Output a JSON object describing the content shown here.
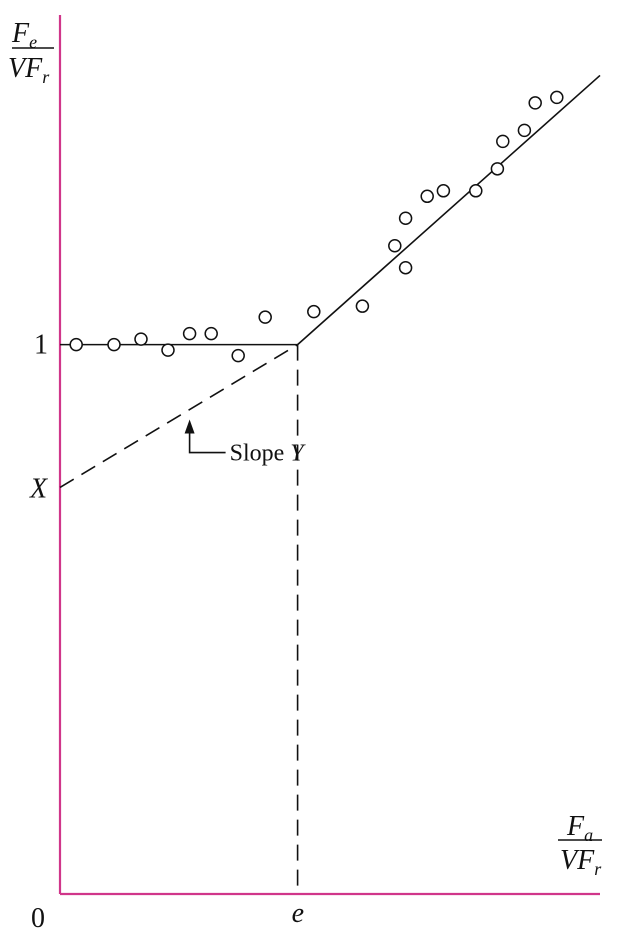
{
  "chart_data": {
    "type": "scatter",
    "title": "",
    "y_label": {
      "numerator_base": "F",
      "numerator_subscript": "e",
      "denominator_base": "VF",
      "denominator_subscript": "r"
    },
    "x_label": {
      "numerator_base": "F",
      "numerator_subscript": "a",
      "denominator_base": "VF",
      "denominator_subscript": "r"
    },
    "tick_labels": {
      "origin": "0",
      "y_one": "1",
      "y_intercept": "X",
      "x_break": "e"
    },
    "annotation": {
      "prefix": "Slope ",
      "variable": "Y"
    },
    "axes": {
      "xlim": [
        0,
        1
      ],
      "ylim": [
        0,
        1.6
      ],
      "grid": false,
      "axis_color": "#d0368a"
    },
    "e_value": 0.44,
    "x_intercept_value": 0.74,
    "series": [
      {
        "x": [
          0.03,
          0.1,
          0.15,
          0.2,
          0.24,
          0.28,
          0.33,
          0.38,
          0.47,
          0.56,
          0.62,
          0.64,
          0.64,
          0.68,
          0.71,
          0.77,
          0.81,
          0.82,
          0.86,
          0.88,
          0.92
        ],
        "y": [
          1.0,
          1.0,
          1.01,
          0.99,
          1.02,
          1.02,
          0.98,
          1.05,
          1.06,
          1.07,
          1.18,
          1.14,
          1.23,
          1.27,
          1.28,
          1.28,
          1.32,
          1.37,
          1.39,
          1.44,
          1.45
        ]
      }
    ],
    "fitted": {
      "flat_start": [
        0,
        1
      ],
      "break": [
        0.44,
        1
      ],
      "end": [
        1,
        1.49
      ]
    },
    "extension": {
      "start": [
        0,
        0.74
      ],
      "end": [
        0.44,
        1
      ]
    }
  }
}
